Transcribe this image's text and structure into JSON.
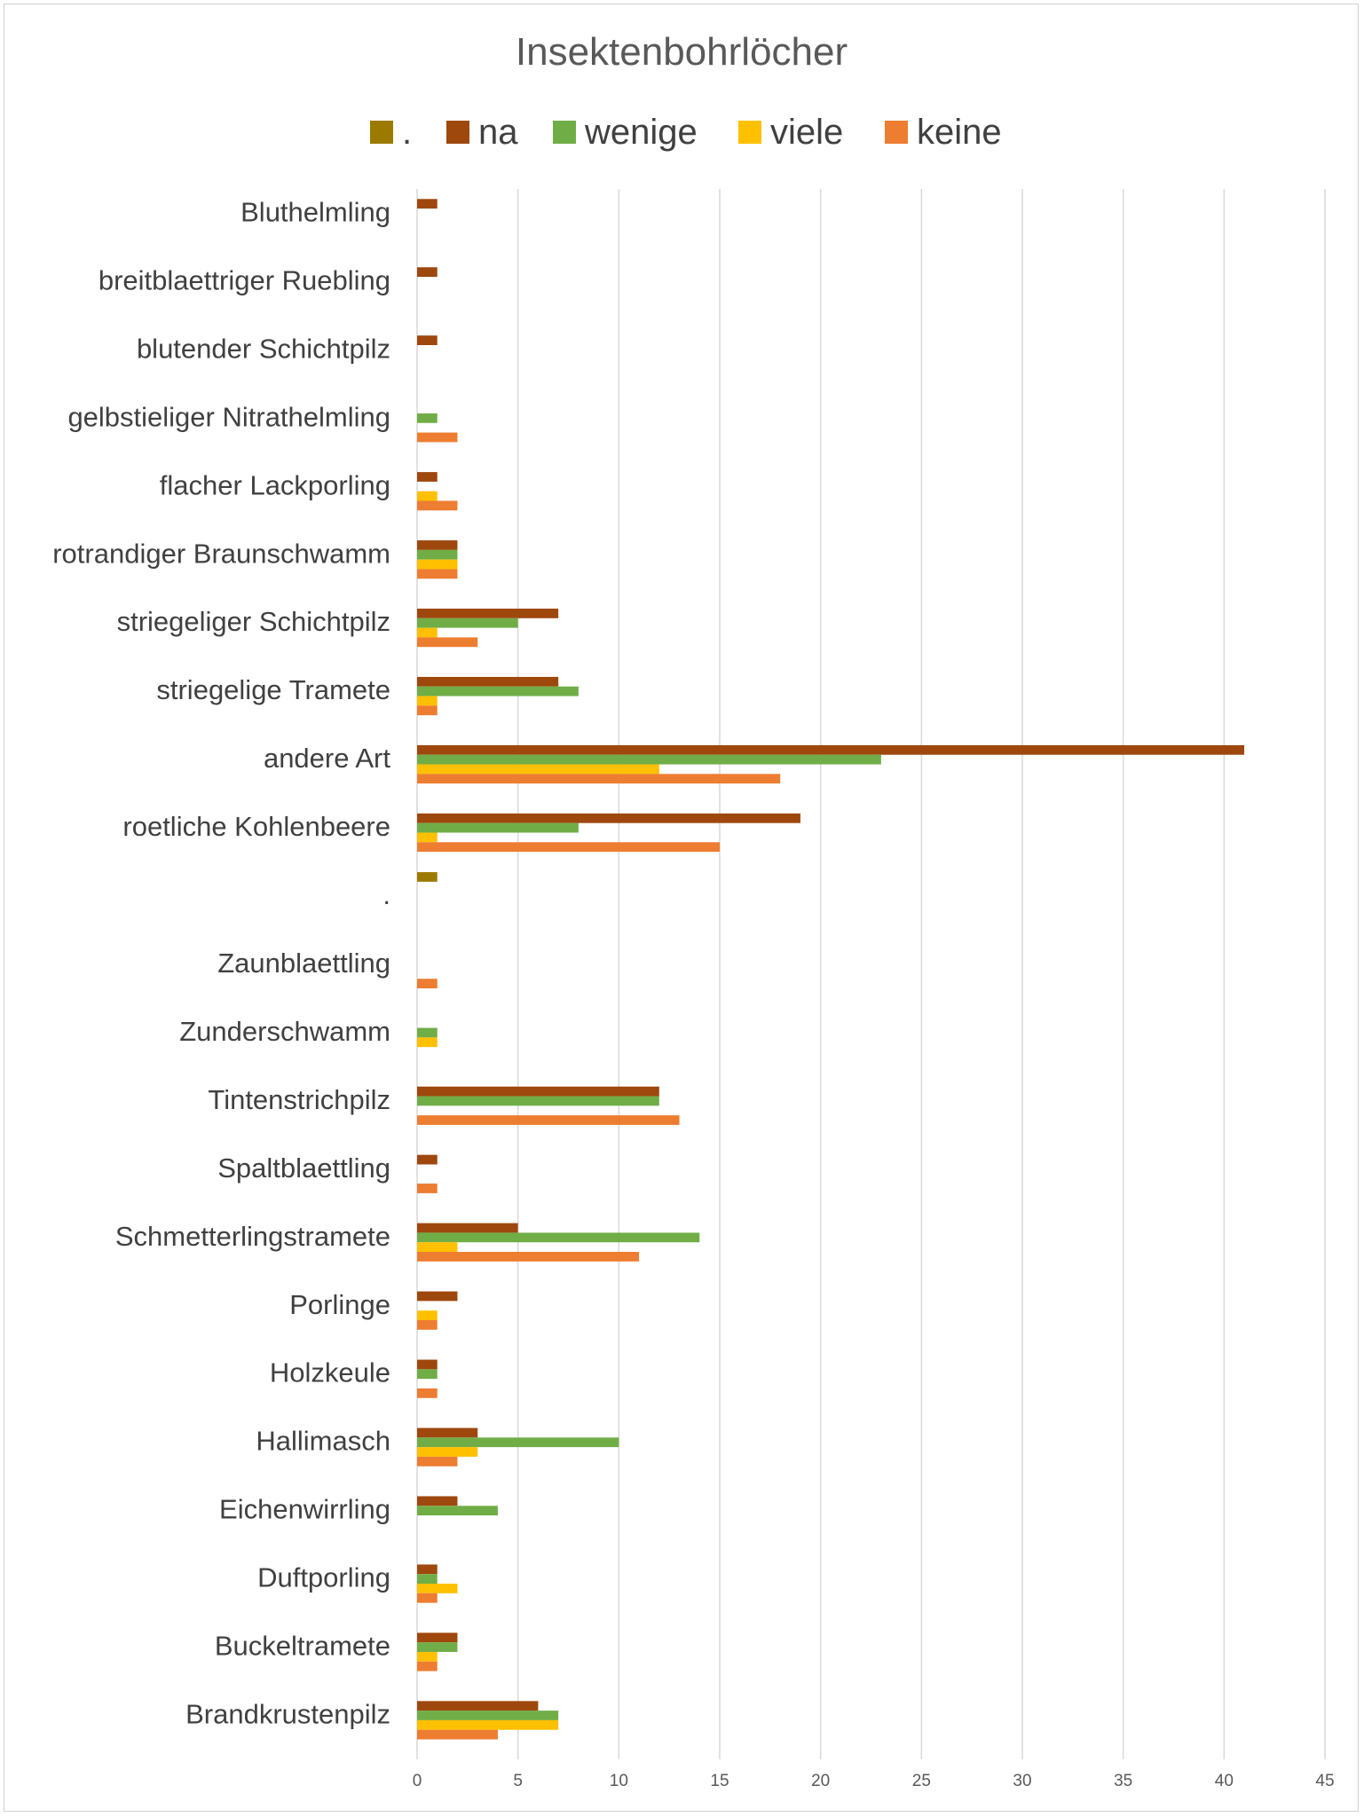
{
  "chart_data": {
    "type": "bar",
    "orientation": "horizontal",
    "title": "Insektenbohrlöcher",
    "xlabel": "",
    "ylabel": "",
    "xlim": [
      0,
      45
    ],
    "x_ticks": [
      0,
      5,
      10,
      15,
      20,
      25,
      30,
      35,
      40,
      45
    ],
    "grid": true,
    "legend_position": "top",
    "categories": [
      "Bluthelmling",
      "breitblaettriger Ruebling",
      "blutender Schichtpilz",
      "gelbstieliger Nitrathelmling",
      "flacher Lackporling",
      "rotrandiger Braunschwamm",
      "striegeliger Schichtpilz",
      "striegelige Tramete",
      "andere Art",
      "roetliche Kohlenbeere",
      ".",
      "Zaunblaettling",
      "Zunderschwamm",
      "Tintenstrichpilz",
      "Spaltblaettling",
      "Schmetterlingstramete",
      "Porlinge",
      "Holzkeule",
      "Hallimasch",
      "Eichenwirrling",
      "Duftporling",
      "Buckeltramete",
      "Brandkrustenpilz"
    ],
    "series": [
      {
        "name": ".",
        "color": "#9C7A00",
        "values": [
          0,
          0,
          0,
          0,
          0,
          0,
          0,
          0,
          0,
          0,
          1,
          0,
          0,
          0,
          0,
          0,
          0,
          0,
          0,
          0,
          0,
          0,
          0
        ]
      },
      {
        "name": "na",
        "color": "#9E480E",
        "values": [
          1,
          1,
          1,
          0,
          1,
          2,
          7,
          7,
          41,
          19,
          0,
          0,
          0,
          12,
          1,
          5,
          2,
          1,
          3,
          2,
          1,
          2,
          6
        ]
      },
      {
        "name": "wenige",
        "color": "#70AD47",
        "values": [
          0,
          0,
          0,
          1,
          0,
          2,
          5,
          8,
          23,
          8,
          0,
          0,
          1,
          12,
          0,
          14,
          0,
          1,
          10,
          4,
          1,
          2,
          7
        ]
      },
      {
        "name": "viele",
        "color": "#FFC000",
        "values": [
          0,
          0,
          0,
          0,
          1,
          2,
          1,
          1,
          12,
          1,
          0,
          0,
          1,
          0,
          0,
          2,
          1,
          0,
          3,
          0,
          2,
          1,
          7
        ]
      },
      {
        "name": "keine",
        "color": "#ED7D31",
        "values": [
          0,
          0,
          0,
          2,
          2,
          2,
          3,
          1,
          18,
          15,
          0,
          1,
          0,
          13,
          1,
          11,
          1,
          1,
          2,
          0,
          1,
          1,
          4
        ]
      }
    ]
  }
}
